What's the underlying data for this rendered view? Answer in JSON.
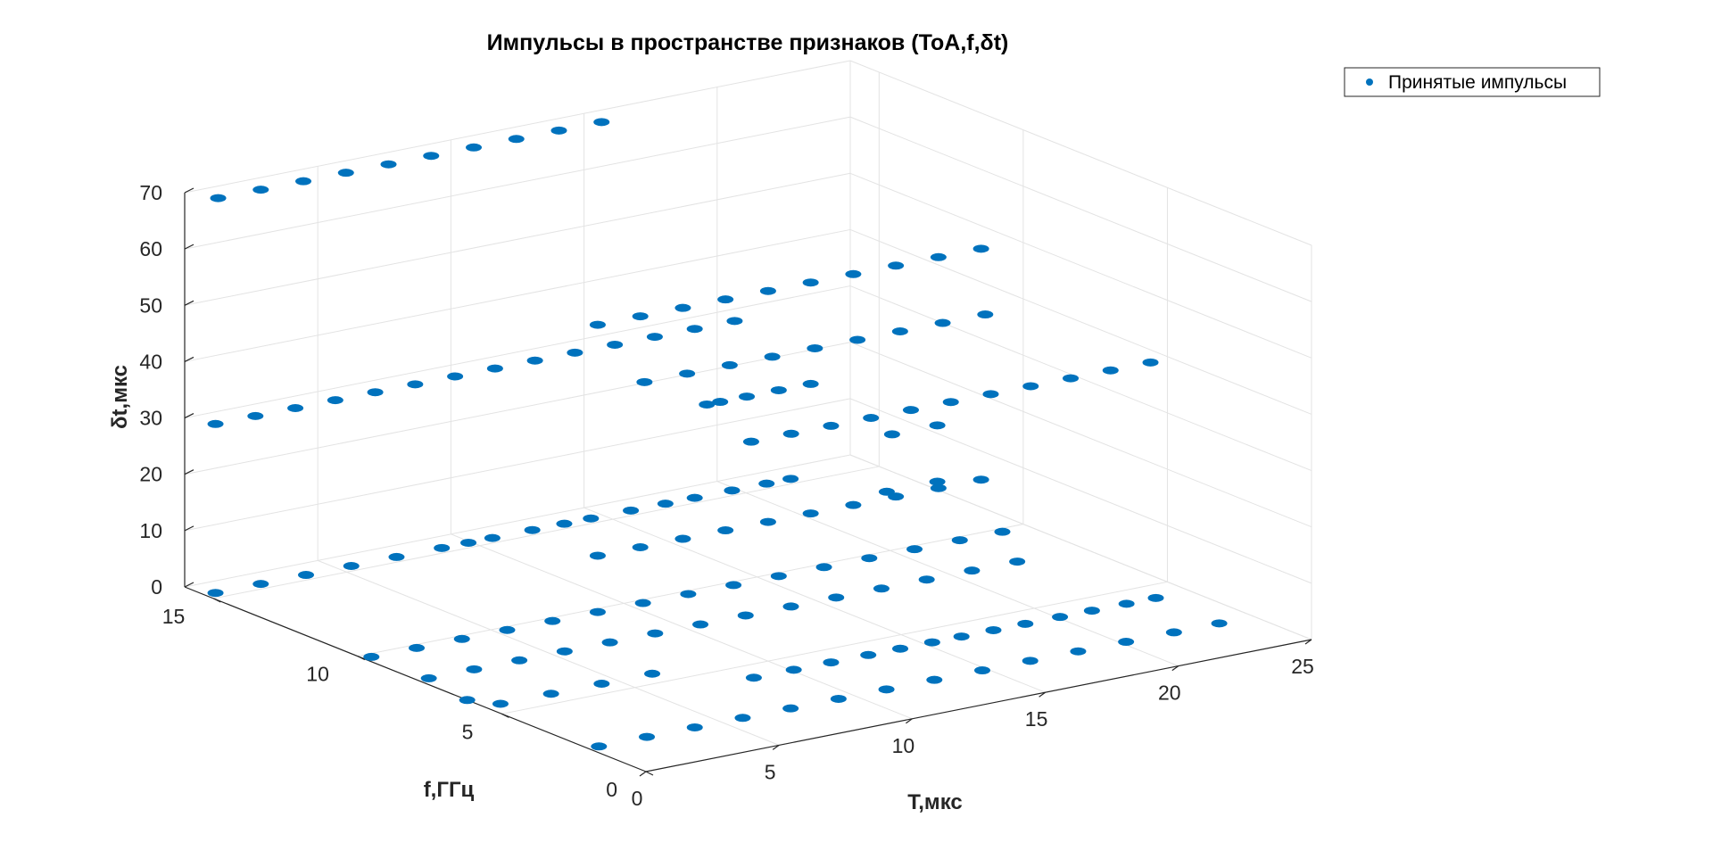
{
  "chart_data": {
    "type": "scatter",
    "projection": "3d",
    "title": "Импульсы в пространстве признаков (ToA,f,δt)",
    "xlabel": "T,мкс",
    "ylabel": "f,ГГц",
    "zlabel": "δt,мкс",
    "xlim": [
      0,
      25
    ],
    "ylim": [
      0,
      16
    ],
    "zlim": [
      0,
      70
    ],
    "xticks": [
      "0",
      "5",
      "10",
      "15",
      "20",
      "25"
    ],
    "yticks": [
      "0",
      "5",
      "10",
      "15"
    ],
    "zticks": [
      "0",
      "10",
      "20",
      "30",
      "40",
      "50",
      "60",
      "70"
    ],
    "grid": true,
    "legend_location": "top-right",
    "marker_color": "#0072BD",
    "series": [
      {
        "name": "Принятые импульсы",
        "points": [
          [
            0.5,
            15.3,
            70
          ],
          [
            2.1,
            15.3,
            70
          ],
          [
            3.7,
            15.3,
            70
          ],
          [
            5.3,
            15.3,
            70
          ],
          [
            6.9,
            15.3,
            70
          ],
          [
            8.5,
            15.3,
            70
          ],
          [
            10.1,
            15.3,
            70
          ],
          [
            11.7,
            15.3,
            70
          ],
          [
            13.3,
            15.3,
            70
          ],
          [
            14.9,
            15.3,
            70
          ],
          [
            8.8,
            9.8,
            51
          ],
          [
            10.4,
            9.8,
            51
          ],
          [
            12.0,
            9.8,
            51
          ],
          [
            13.6,
            9.8,
            51
          ],
          [
            15.2,
            9.8,
            51
          ],
          [
            16.8,
            9.8,
            51
          ],
          [
            18.4,
            9.8,
            51
          ],
          [
            20.0,
            9.8,
            51
          ],
          [
            21.6,
            9.8,
            51
          ],
          [
            23.2,
            9.8,
            51
          ],
          [
            8.5,
            7.9,
            45
          ],
          [
            10.1,
            7.9,
            45
          ],
          [
            11.7,
            7.9,
            45
          ],
          [
            13.3,
            7.9,
            45
          ],
          [
            14.9,
            7.9,
            45
          ],
          [
            16.5,
            7.9,
            45
          ],
          [
            18.1,
            7.9,
            45
          ],
          [
            19.7,
            7.9,
            45
          ],
          [
            21.3,
            7.9,
            45
          ],
          [
            8.5,
            4.2,
            42
          ],
          [
            10.0,
            4.2,
            42
          ],
          [
            11.5,
            4.2,
            42
          ],
          [
            13.0,
            4.2,
            42
          ],
          [
            14.5,
            4.2,
            42
          ],
          [
            16.0,
            4.2,
            42
          ],
          [
            17.5,
            4.2,
            42
          ],
          [
            19.0,
            4.2,
            42
          ],
          [
            20.5,
            4.2,
            42
          ],
          [
            22.0,
            4.2,
            42
          ],
          [
            23.5,
            4.2,
            42
          ],
          [
            0.4,
            15.3,
            30
          ],
          [
            1.9,
            15.3,
            30
          ],
          [
            3.4,
            15.3,
            30
          ],
          [
            4.9,
            15.3,
            30
          ],
          [
            6.4,
            15.3,
            30
          ],
          [
            7.9,
            15.3,
            30
          ],
          [
            9.4,
            15.3,
            30
          ],
          [
            10.9,
            15.3,
            30
          ],
          [
            12.4,
            15.3,
            30
          ],
          [
            13.9,
            15.3,
            30
          ],
          [
            15.4,
            15.3,
            30
          ],
          [
            16.9,
            15.3,
            30
          ],
          [
            18.4,
            15.3,
            30
          ],
          [
            19.9,
            15.3,
            30
          ],
          [
            12.9,
            9.8,
            33
          ],
          [
            13.4,
            9.8,
            33
          ],
          [
            14.4,
            9.8,
            33
          ],
          [
            15.6,
            9.8,
            33
          ],
          [
            16.8,
            9.8,
            33
          ],
          [
            17.8,
            7.9,
            27
          ],
          [
            19.5,
            7.9,
            27
          ],
          [
            0.4,
            15.3,
            0
          ],
          [
            2.1,
            15.3,
            0
          ],
          [
            3.8,
            15.3,
            0
          ],
          [
            5.5,
            15.3,
            0
          ],
          [
            7.2,
            15.3,
            0
          ],
          [
            8.9,
            15.3,
            0
          ],
          [
            9.9,
            15.3,
            0
          ],
          [
            10.8,
            15.3,
            0
          ],
          [
            12.3,
            15.3,
            0
          ],
          [
            13.5,
            15.3,
            0
          ],
          [
            14.5,
            15.3,
            0
          ],
          [
            16.0,
            15.3,
            0
          ],
          [
            17.3,
            15.3,
            0
          ],
          [
            18.4,
            15.3,
            0
          ],
          [
            19.8,
            15.3,
            0
          ],
          [
            21.1,
            15.3,
            0
          ],
          [
            22.0,
            15.3,
            0
          ],
          [
            8.8,
            9.8,
            10
          ],
          [
            10.4,
            9.8,
            10
          ],
          [
            12.0,
            9.8,
            10
          ],
          [
            13.6,
            9.8,
            10
          ],
          [
            15.2,
            9.8,
            10
          ],
          [
            16.8,
            9.8,
            10
          ],
          [
            18.4,
            9.8,
            10
          ],
          [
            20.0,
            9.8,
            10
          ],
          [
            21.6,
            9.8,
            10
          ],
          [
            23.2,
            9.8,
            10
          ],
          [
            17.6,
            7.9,
            17
          ],
          [
            19.5,
            7.9,
            17
          ],
          [
            8.6,
            4.2,
            0
          ],
          [
            10.1,
            4.2,
            0
          ],
          [
            11.5,
            4.2,
            0
          ],
          [
            12.9,
            4.2,
            0
          ],
          [
            14.1,
            4.2,
            0
          ],
          [
            15.3,
            4.2,
            0
          ],
          [
            16.4,
            4.2,
            0
          ],
          [
            17.6,
            4.2,
            0
          ],
          [
            18.8,
            4.2,
            0
          ],
          [
            20.1,
            4.2,
            0
          ],
          [
            21.3,
            4.2,
            0
          ],
          [
            22.6,
            4.2,
            0
          ],
          [
            23.7,
            4.2,
            0
          ],
          [
            0.3,
            9.8,
            0
          ],
          [
            2.0,
            9.8,
            0
          ],
          [
            3.7,
            9.8,
            0
          ],
          [
            5.4,
            9.8,
            0
          ],
          [
            7.1,
            9.8,
            0
          ],
          [
            8.8,
            9.8,
            0
          ],
          [
            10.5,
            9.8,
            0
          ],
          [
            12.2,
            9.8,
            0
          ],
          [
            13.9,
            9.8,
            0
          ],
          [
            15.6,
            9.8,
            0
          ],
          [
            17.3,
            9.8,
            0
          ],
          [
            19.0,
            9.8,
            0
          ],
          [
            20.7,
            9.8,
            0
          ],
          [
            22.4,
            9.8,
            0
          ],
          [
            24.0,
            9.8,
            0
          ],
          [
            0.4,
            7.9,
            0
          ],
          [
            2.1,
            7.9,
            0
          ],
          [
            3.8,
            7.9,
            0
          ],
          [
            5.5,
            7.9,
            0
          ],
          [
            7.2,
            7.9,
            0
          ],
          [
            8.9,
            7.9,
            0
          ],
          [
            10.6,
            7.9,
            0
          ],
          [
            12.3,
            7.9,
            0
          ],
          [
            14.0,
            7.9,
            0
          ],
          [
            15.7,
            7.9,
            0
          ],
          [
            17.4,
            7.9,
            0
          ],
          [
            19.1,
            7.9,
            0
          ],
          [
            20.8,
            7.9,
            0
          ],
          [
            22.5,
            7.9,
            0
          ],
          [
            0.6,
            5.6,
            0
          ],
          [
            2.5,
            5.6,
            0
          ],
          [
            4.4,
            5.6,
            0
          ],
          [
            6.3,
            5.6,
            0
          ],
          [
            0.4,
            2.0,
            0
          ],
          [
            2.2,
            2.0,
            0
          ],
          [
            4.0,
            2.0,
            0
          ],
          [
            5.8,
            2.0,
            0
          ],
          [
            7.6,
            2.0,
            0
          ],
          [
            9.4,
            2.0,
            0
          ],
          [
            11.2,
            2.0,
            0
          ],
          [
            13.0,
            2.0,
            0
          ],
          [
            14.8,
            2.0,
            0
          ],
          [
            16.6,
            2.0,
            0
          ],
          [
            18.4,
            2.0,
            0
          ],
          [
            20.2,
            2.0,
            0
          ],
          [
            22.0,
            2.0,
            0
          ],
          [
            23.7,
            2.0,
            0
          ],
          [
            0.0,
            6.2,
            0
          ]
        ]
      }
    ]
  }
}
